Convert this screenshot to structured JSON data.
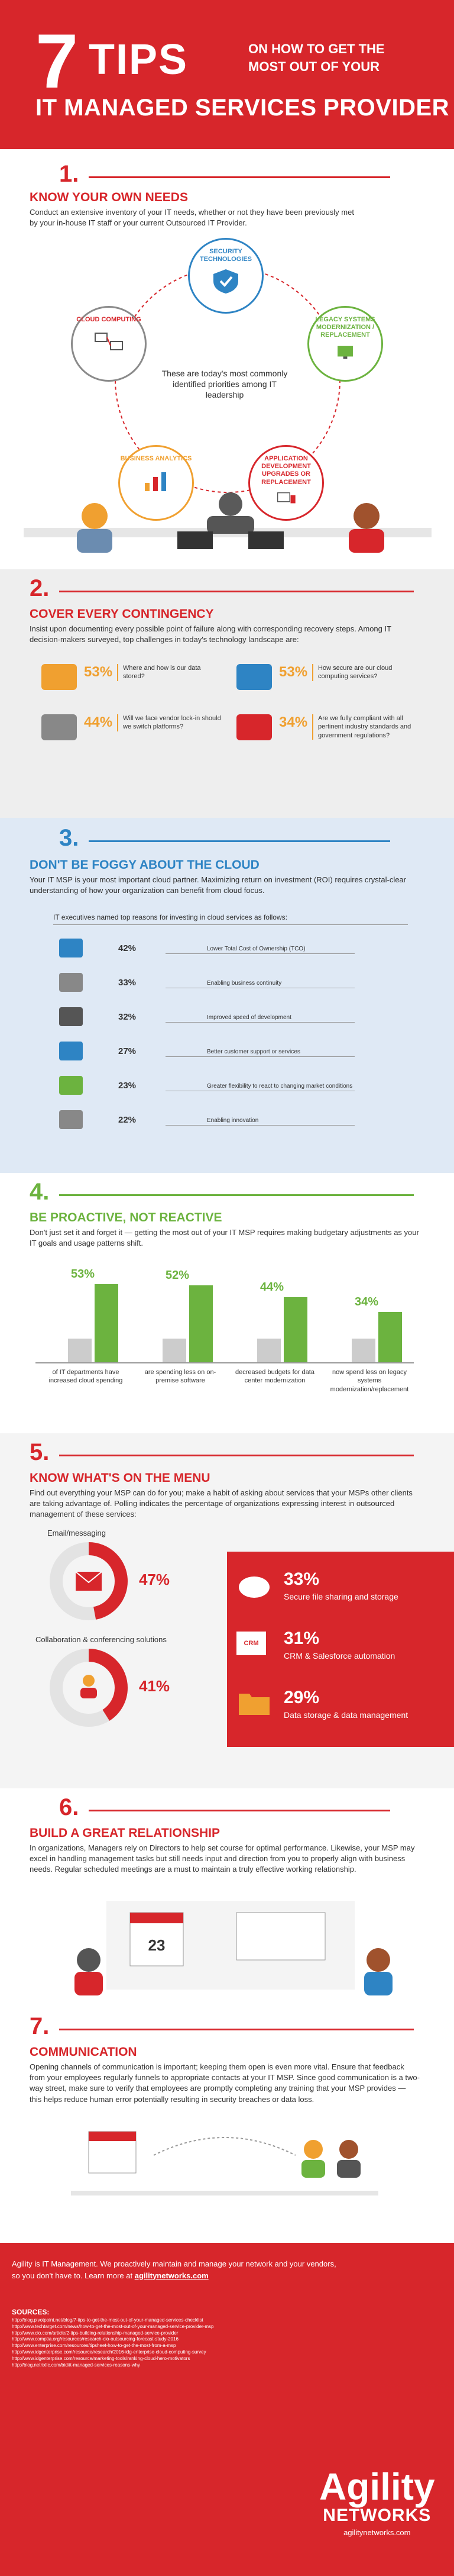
{
  "header": {
    "number": "7",
    "tips": "TIPS",
    "subtitle_line1": "ON HOW TO GET THE",
    "subtitle_line2": "MOST OUT OF YOUR",
    "title": "IT MANAGED SERVICES PROVIDER"
  },
  "s1": {
    "num": "1.",
    "title": "KNOW YOUR OWN NEEDS",
    "text": "Conduct an extensive inventory of your IT needs, whether or not they have been previously met by your in-house IT staff or your current Outsourced IT Provider.",
    "needs": {
      "security": "SECURITY TECHNOLOGIES",
      "cloud": "CLOUD COMPUTING",
      "legacy": "LEGACY SYSTEMS MODERNIZATION / REPLACEMENT",
      "analytics": "BUSINESS ANALYTICS",
      "appdev": "APPLICATION DEVELOPMENT UPGRADES OR REPLACEMENT"
    },
    "center": "These are today's most commonly identified priorities among IT leadership"
  },
  "s2": {
    "num": "2.",
    "title": "COVER EVERY CONTINGENCY",
    "text": "Insist upon documenting every possible point of failure along with corresponding recovery steps. Among IT decision-makers surveyed, top challenges in today's technology landscape are:",
    "stats": [
      {
        "pct": "53%",
        "desc": "Where and how is our data stored?"
      },
      {
        "pct": "53%",
        "desc": "How secure are our cloud computing services?"
      },
      {
        "pct": "44%",
        "desc": "Will we face vendor lock-in should we switch platforms?"
      },
      {
        "pct": "34%",
        "desc": "Are we fully compliant with all pertinent industry standards and government regulations?"
      }
    ]
  },
  "s3": {
    "num": "3.",
    "title": "DON'T BE FOGGY ABOUT THE CLOUD",
    "text": "Your IT MSP is your most important cloud partner. Maximizing return on investment (ROI) requires crystal-clear understanding of how your organization can benefit from cloud focus.",
    "intro": "IT executives named top reasons for investing in cloud services as follows:",
    "reasons": [
      {
        "pct": "42%",
        "label": "Lower Total Cost of Ownership (TCO)"
      },
      {
        "pct": "33%",
        "label": "Enabling business continuity"
      },
      {
        "pct": "32%",
        "label": "Improved speed of development"
      },
      {
        "pct": "27%",
        "label": "Better customer support or services"
      },
      {
        "pct": "23%",
        "label": "Greater flexibility to react to changing market conditions"
      },
      {
        "pct": "22%",
        "label": "Enabling innovation"
      }
    ]
  },
  "s4": {
    "num": "4.",
    "title": "BE PROACTIVE, NOT REACTIVE",
    "text": "Don't just set it and forget it — getting the most out of your IT MSP requires making budgetary adjustments as your IT goals and usage patterns shift.",
    "bars": [
      {
        "pct": "53%",
        "value": 53,
        "label": "of IT departments have increased cloud spending"
      },
      {
        "pct": "52%",
        "value": 52,
        "label": "are spending less on on-premise software"
      },
      {
        "pct": "44%",
        "value": 44,
        "label": "decreased budgets for data center modernization"
      },
      {
        "pct": "34%",
        "value": 34,
        "label": "now spend less on legacy systems modernization/replacement"
      }
    ]
  },
  "s5": {
    "num": "5.",
    "title": "KNOW WHAT'S ON THE MENU",
    "text": "Find out everything your MSP can do for you; make a habit of asking about services that your MSPs other clients are taking advantage of. Polling indicates the percentage of organizations expressing interest in outsourced management of these services:",
    "donuts": [
      {
        "label": "Email/messaging",
        "pct": "47%",
        "value": 47
      },
      {
        "label": "Collaboration & conferencing solutions",
        "pct": "41%",
        "value": 41
      }
    ],
    "menu": [
      {
        "pct": "33%",
        "label": "Secure file sharing and storage"
      },
      {
        "pct": "31%",
        "label": "CRM & Salesforce automation"
      },
      {
        "pct": "29%",
        "label": "Data storage & data management"
      }
    ],
    "crm_icon_text": "CRM"
  },
  "s6": {
    "num": "6.",
    "title": "BUILD A GREAT RELATIONSHIP",
    "text": "In organizations, Managers rely on Directors to help set course for optimal performance. Likewise, your MSP may excel in handling management tasks but still needs input and direction from you to properly align with business needs. Regular scheduled meetings are a must to maintain a truly effective working relationship.",
    "calendar_day": "23"
  },
  "s7": {
    "num": "7.",
    "title": "COMMUNICATION",
    "text": "Opening channels of communication is important; keeping them open is even more vital. Ensure that feedback from your employees regularly funnels to appropriate contacts at your IT MSP. Since good communication is a two-way street, make sure to verify that employees are promptly completing any training that your MSP provides — this helps reduce human error potentially resulting in security breaches or data loss."
  },
  "footer": {
    "blurb_line1": "Agility is IT Management. We proactively maintain and manage your network and your vendors,",
    "blurb_line2": "so you don't have to. Learn more at",
    "blurb_link": "agilitynetworks.com",
    "sources_title": "SOURCES:",
    "sources": [
      "http://blog.pivotpoint.net/blog/7-tips-to-get-the-most-out-of-your-managed-services-checklist",
      "http://www.techtarget.com/news/how-to-get-the-most-out-of-your-managed-service-provider-msp",
      "http://www.cio.com/article/2-tips-building-relationship-managed-service-provider",
      "http://www.comptia.org/resources/research-cio-outsourcing-forecast-study-2016",
      "http://www.enterprise.com/resources/tipsheet-how-to-get-the-most-from-a-msp",
      "http://www.idgenterprise.com/resource/research/2016-idg-enterprise-cloud-computing-survey",
      "http://www.idgenterprise.com/resource/marketing-tools/ranking-cloud-hero-motivators",
      "http://blog.netrixllc.com/bid/it-managed-services-reasons-why"
    ],
    "logo_top": "Agility",
    "logo_bottom": "NETWORKS",
    "logo_url": "agilitynetworks.com"
  },
  "colors": {
    "brand_red": "#d7262b",
    "accent_orange": "#f0a030",
    "accent_blue": "#2e84c4",
    "accent_green": "#6cb33f"
  }
}
